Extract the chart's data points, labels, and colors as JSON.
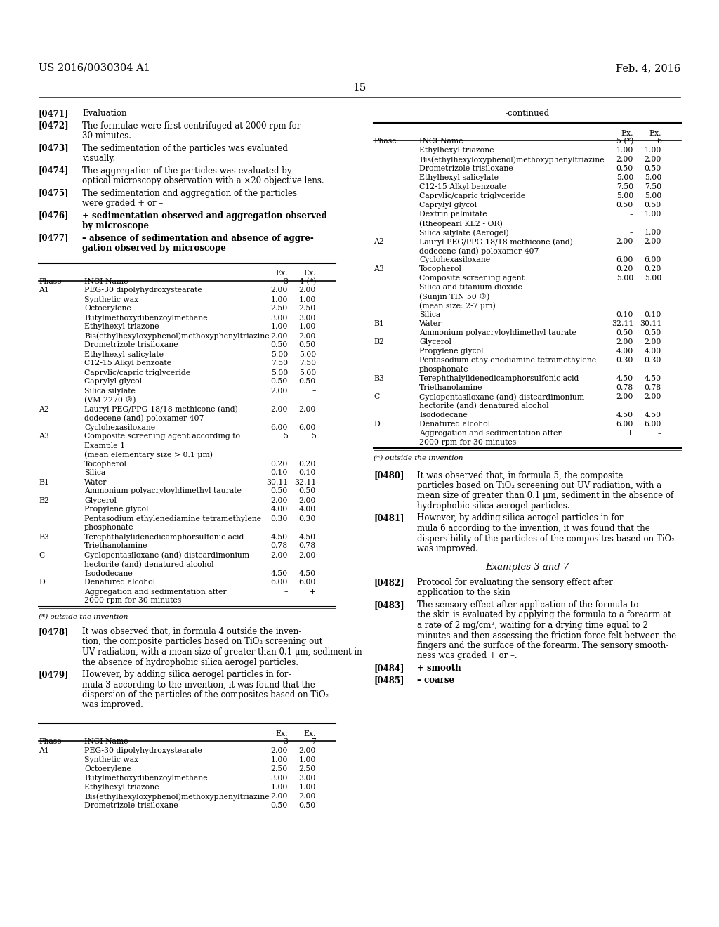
{
  "page_header_left": "US 2016/0030304 A1",
  "page_header_right": "Feb. 4, 2016",
  "page_number": "15",
  "background_color": "#ffffff",
  "left_table": {
    "col_headers": [
      "Phase",
      "INCI Name",
      "Ex.\n3",
      "Ex.\n4 (*)"
    ],
    "rows": [
      [
        "A1",
        "PEG-30 dipolyhydroxystearate",
        "2.00",
        "2.00"
      ],
      [
        "",
        "Synthetic wax",
        "1.00",
        "1.00"
      ],
      [
        "",
        "Octoerylene",
        "2.50",
        "2.50"
      ],
      [
        "",
        "Butylmethoxydibenzoylmethane",
        "3.00",
        "3.00"
      ],
      [
        "",
        "Ethylhexyl triazone",
        "1.00",
        "1.00"
      ],
      [
        "",
        "Bis(ethylhexyloxyphenol)methoxyphenyltriazine",
        "2.00",
        "2.00"
      ],
      [
        "",
        "Drometrizole trisiloxane",
        "0.50",
        "0.50"
      ],
      [
        "",
        "Ethylhexyl salicylate",
        "5.00",
        "5.00"
      ],
      [
        "",
        "C12-15 Alkyl benzoate",
        "7.50",
        "7.50"
      ],
      [
        "",
        "Caprylic/capric triglyceride",
        "5.00",
        "5.00"
      ],
      [
        "",
        "Caprylyl glycol",
        "0.50",
        "0.50"
      ],
      [
        "",
        "Silica silylate",
        "2.00",
        "–"
      ],
      [
        "",
        "(VM 2270 ®)",
        "",
        ""
      ],
      [
        "A2",
        "Lauryl PEG/PPG-18/18 methicone (and)",
        "2.00",
        "2.00"
      ],
      [
        "",
        "dodecene (and) poloxamer 407",
        "",
        ""
      ],
      [
        "",
        "Cyclohexasiloxane",
        "6.00",
        "6.00"
      ],
      [
        "A3",
        "Composite screening agent according to",
        "5",
        "5"
      ],
      [
        "",
        "Example 1",
        "",
        ""
      ],
      [
        "",
        "(mean elementary size > 0.1 μm)",
        "",
        ""
      ],
      [
        "",
        "Tocopherol",
        "0.20",
        "0.20"
      ],
      [
        "",
        "Silica",
        "0.10",
        "0.10"
      ],
      [
        "B1",
        "Water",
        "30.11",
        "32.11"
      ],
      [
        "",
        "Ammonium polyacryloyldimethyl taurate",
        "0.50",
        "0.50"
      ],
      [
        "B2",
        "Glycerol",
        "2.00",
        "2.00"
      ],
      [
        "",
        "Propylene glycol",
        "4.00",
        "4.00"
      ],
      [
        "",
        "Pentasodium ethylenediamine tetramethylene",
        "0.30",
        "0.30"
      ],
      [
        "",
        "phosphonate",
        "",
        ""
      ],
      [
        "B3",
        "Terephthalylidenedicamphorsulfonic acid",
        "4.50",
        "4.50"
      ],
      [
        "",
        "Triethanolamine",
        "0.78",
        "0.78"
      ],
      [
        "C",
        "Cyclopentasiloxane (and) disteardimonium",
        "2.00",
        "2.00"
      ],
      [
        "",
        "hectorite (and) denatured alcohol",
        "",
        ""
      ],
      [
        "",
        "Isododecane",
        "4.50",
        "4.50"
      ],
      [
        "D",
        "Denatured alcohol",
        "6.00",
        "6.00"
      ],
      [
        "",
        "Aggregation and sedimentation after",
        "–",
        "+"
      ],
      [
        "",
        "2000 rpm for 30 minutes",
        "",
        ""
      ]
    ],
    "footnote": "(*) outside the invention"
  },
  "right_table": {
    "col_headers": [
      "Phase",
      "INCI Name",
      "Ex.\n5 (*)",
      "Ex.\n6"
    ],
    "rows": [
      [
        "",
        "Ethylhexyl triazone",
        "1.00",
        "1.00"
      ],
      [
        "",
        "Bis(ethylhexyloxyphenol)methoxyphenyltriazine",
        "2.00",
        "2.00"
      ],
      [
        "",
        "Drometrizole trisiloxane",
        "0.50",
        "0.50"
      ],
      [
        "",
        "Ethylhexyl salicylate",
        "5.00",
        "5.00"
      ],
      [
        "",
        "C12-15 Alkyl benzoate",
        "7.50",
        "7.50"
      ],
      [
        "",
        "Caprylic/capric triglyceride",
        "5.00",
        "5.00"
      ],
      [
        "",
        "Caprylyl glycol",
        "0.50",
        "0.50"
      ],
      [
        "",
        "Dextrin palmitate",
        "–",
        "1.00"
      ],
      [
        "",
        "(Rheopearl KL2 - OR)",
        "",
        ""
      ],
      [
        "",
        "Silica silylate (Aerogel)",
        "–",
        "1.00"
      ],
      [
        "A2",
        "Lauryl PEG/PPG-18/18 methicone (and)",
        "2.00",
        "2.00"
      ],
      [
        "",
        "dodecene (and) poloxamer 407",
        "",
        ""
      ],
      [
        "",
        "Cyclohexasiloxane",
        "6.00",
        "6.00"
      ],
      [
        "A3",
        "Tocopherol",
        "0.20",
        "0.20"
      ],
      [
        "",
        "Composite screening agent",
        "5.00",
        "5.00"
      ],
      [
        "",
        "Silica and titanium dioxide",
        "",
        ""
      ],
      [
        "",
        "(Sunjin TIN 50 ®)",
        "",
        ""
      ],
      [
        "",
        "(mean size: 2-7 μm)",
        "",
        ""
      ],
      [
        "",
        "Silica",
        "0.10",
        "0.10"
      ],
      [
        "B1",
        "Water",
        "32.11",
        "30.11"
      ],
      [
        "",
        "Ammonium polyacryloyldimethyl taurate",
        "0.50",
        "0.50"
      ],
      [
        "B2",
        "Glycerol",
        "2.00",
        "2.00"
      ],
      [
        "",
        "Propylene glycol",
        "4.00",
        "4.00"
      ],
      [
        "",
        "Pentasodium ethylenediamine tetramethylene",
        "0.30",
        "0.30"
      ],
      [
        "",
        "phosphonate",
        "",
        ""
      ],
      [
        "B3",
        "Terephthalylidenedicamphorsulfonic acid",
        "4.50",
        "4.50"
      ],
      [
        "",
        "Triethanolamine",
        "0.78",
        "0.78"
      ],
      [
        "C",
        "Cyclopentasiloxane (and) disteardimonium",
        "2.00",
        "2.00"
      ],
      [
        "",
        "hectorite (and) denatured alcohol",
        "",
        ""
      ],
      [
        "",
        "Isododecane",
        "4.50",
        "4.50"
      ],
      [
        "D",
        "Denatured alcohol",
        "6.00",
        "6.00"
      ],
      [
        "",
        "Aggregation and sedimentation after",
        "+",
        "–"
      ],
      [
        "",
        "2000 rpm for 30 minutes",
        "",
        ""
      ]
    ],
    "footnote": "(*) outside the invention"
  },
  "bottom_left_table": {
    "col_headers": [
      "Phase",
      "INCI Name",
      "Ex.\n3",
      "Ex.\n7"
    ],
    "rows": [
      [
        "A1",
        "PEG-30 dipolyhydroxystearate",
        "2.00",
        "2.00"
      ],
      [
        "",
        "Synthetic wax",
        "1.00",
        "1.00"
      ],
      [
        "",
        "Octoerylene",
        "2.50",
        "2.50"
      ],
      [
        "",
        "Butylmethoxydibenzoylmethane",
        "3.00",
        "3.00"
      ],
      [
        "",
        "Ethylhexyl triazone",
        "1.00",
        "1.00"
      ],
      [
        "",
        "Bis(ethylhexyloxyphenol)methoxyphenyltriazine",
        "2.00",
        "2.00"
      ],
      [
        "",
        "Drometrizole trisiloxane",
        "0.50",
        "0.50"
      ]
    ]
  }
}
